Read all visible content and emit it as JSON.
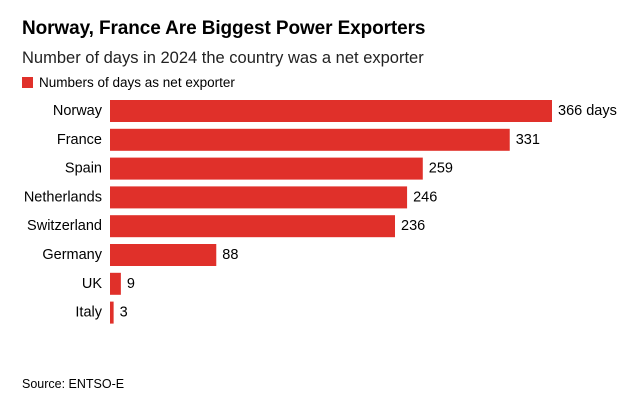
{
  "chart_data": {
    "type": "bar",
    "orientation": "horizontal",
    "title": "Norway, France Are Biggest Power Exporters",
    "subtitle": "Number of days in 2024 the country was a net exporter",
    "categories": [
      "Norway",
      "France",
      "Spain",
      "Netherlands",
      "Switzerland",
      "Germany",
      "UK",
      "Italy"
    ],
    "series": [
      {
        "name": "Numbers of days as net exporter",
        "values": [
          366,
          331,
          259,
          246,
          236,
          88,
          9,
          3
        ],
        "labels": [
          "366 days",
          "331",
          "259",
          "246",
          "236",
          "88",
          "9",
          "3"
        ],
        "color": "#e0302a"
      }
    ],
    "xlim": [
      0,
      366
    ],
    "grid": false,
    "legend_position": "top-left",
    "source": "Source: ENTSO-E"
  }
}
